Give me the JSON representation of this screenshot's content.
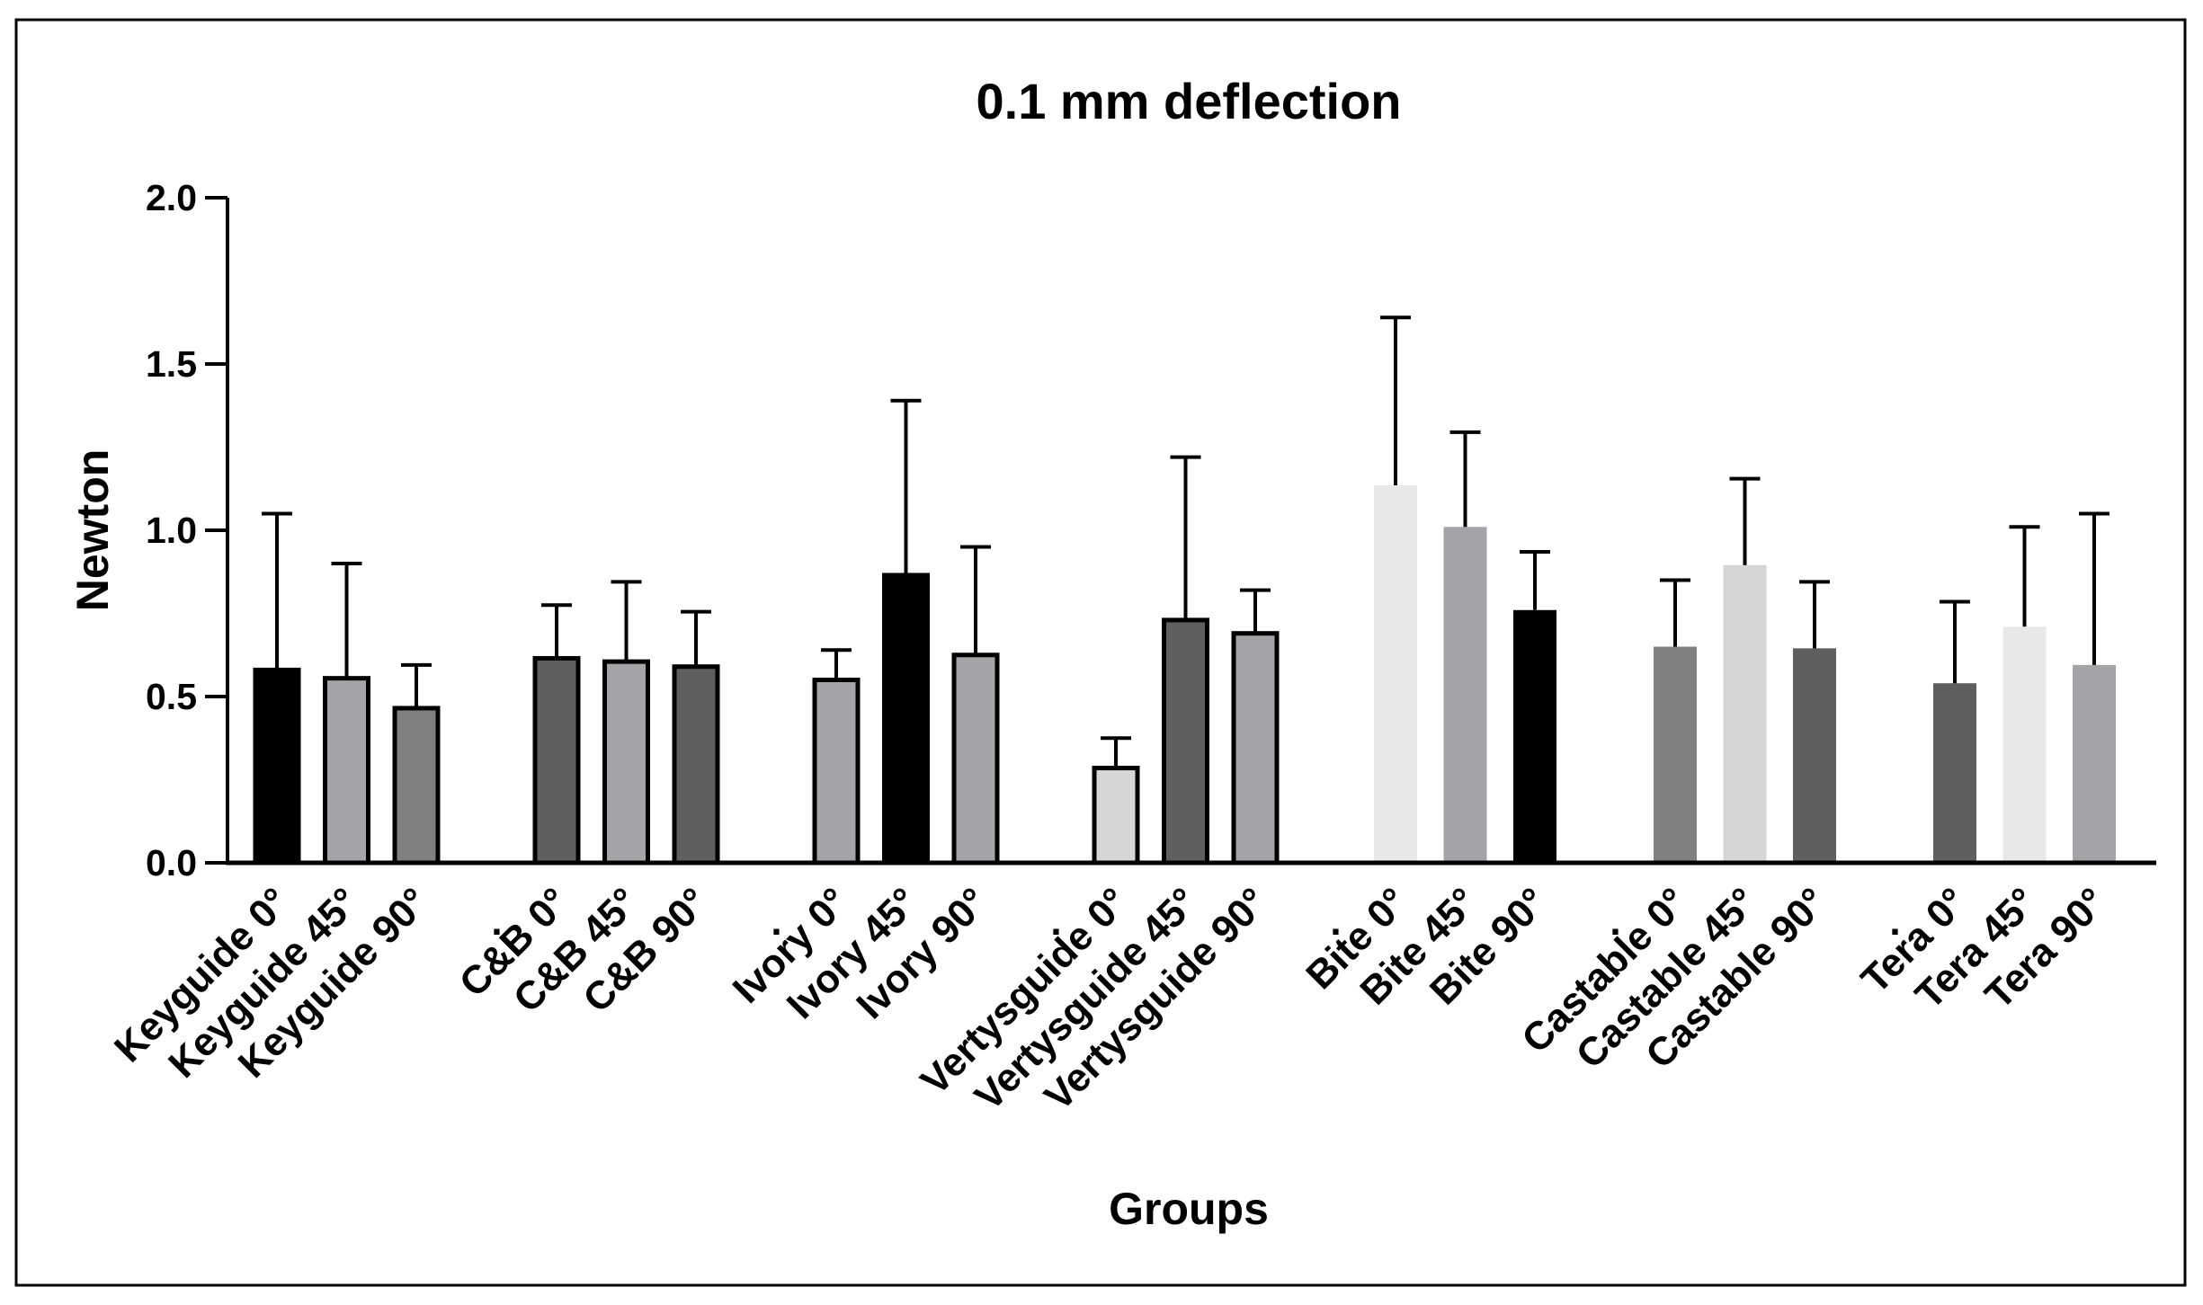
{
  "chart_data": {
    "type": "bar",
    "title": "0.1 mm deflection",
    "xlabel": "Groups",
    "ylabel": "Newton",
    "ylim": [
      0,
      2.0
    ],
    "yticks": [
      "0.0",
      "0.5",
      "1.0",
      "1.5",
      "2.0"
    ],
    "legend": "none",
    "grid": false,
    "groups": [
      {
        "name": "Keyguide",
        "bars": [
          {
            "label": "Keyguide 0°",
            "value": 0.58,
            "error": 0.47,
            "color": "#000000",
            "outlined": true
          },
          {
            "label": "Keyguide 45°",
            "value": 0.555,
            "error": 0.345,
            "color": "#a3a3a8",
            "outlined": true
          },
          {
            "label": "Keyguide 90°",
            "value": 0.465,
            "error": 0.13,
            "color": "#808080",
            "outlined": true
          }
        ]
      },
      {
        "name": "C&B",
        "bars": [
          {
            "label": "C&B 0°",
            "value": 0.615,
            "error": 0.16,
            "color": "#5f5f5f",
            "outlined": true
          },
          {
            "label": "C&B 45°",
            "value": 0.605,
            "error": 0.24,
            "color": "#a3a3a8",
            "outlined": true
          },
          {
            "label": "C&B 90°",
            "value": 0.59,
            "error": 0.165,
            "color": "#5f5f5f",
            "outlined": true
          }
        ]
      },
      {
        "name": "Ivory",
        "bars": [
          {
            "label": "Ivory 0°",
            "value": 0.55,
            "error": 0.09,
            "color": "#a3a3a8",
            "outlined": true
          },
          {
            "label": "Ivory 45°",
            "value": 0.865,
            "error": 0.525,
            "color": "#000000",
            "outlined": true
          },
          {
            "label": "Ivory 90°",
            "value": 0.625,
            "error": 0.325,
            "color": "#a3a3a8",
            "outlined": true
          }
        ]
      },
      {
        "name": "Vertysguide",
        "bars": [
          {
            "label": "Vertysguide 0°",
            "value": 0.285,
            "error": 0.09,
            "color": "#d6d6d6",
            "outlined": true
          },
          {
            "label": "Vertysguide 45°",
            "value": 0.73,
            "error": 0.49,
            "color": "#5f5f5f",
            "outlined": true
          },
          {
            "label": "Vertysguide 90°",
            "value": 0.69,
            "error": 0.13,
            "color": "#a3a3a8",
            "outlined": true
          }
        ]
      },
      {
        "name": "Bite",
        "bars": [
          {
            "label": "Bite 0°",
            "value": 1.135,
            "error": 0.505,
            "color": "#e8e8e8",
            "outlined": false
          },
          {
            "label": "Bite 45°",
            "value": 1.01,
            "error": 0.285,
            "color": "#a3a3a8",
            "outlined": false
          },
          {
            "label": "Bite 90°",
            "value": 0.76,
            "error": 0.175,
            "color": "#000000",
            "outlined": false
          }
        ]
      },
      {
        "name": "Castable",
        "bars": [
          {
            "label": "Castable 0°",
            "value": 0.65,
            "error": 0.2,
            "color": "#808080",
            "outlined": false
          },
          {
            "label": "Castable 45°",
            "value": 0.895,
            "error": 0.26,
            "color": "#d6d6d6",
            "outlined": false
          },
          {
            "label": "Castable 90°",
            "value": 0.645,
            "error": 0.2,
            "color": "#5f5f5f",
            "outlined": false
          }
        ]
      },
      {
        "name": "Tera",
        "bars": [
          {
            "label": "Tera 0°",
            "value": 0.54,
            "error": 0.245,
            "color": "#5f5f5f",
            "outlined": false
          },
          {
            "label": "Tera 45°",
            "value": 0.71,
            "error": 0.3,
            "color": "#e8e8e8",
            "outlined": false
          },
          {
            "label": "Tera 90°",
            "value": 0.595,
            "error": 0.455,
            "color": "#a3a3a8",
            "outlined": false
          }
        ]
      }
    ],
    "separator_labels": [
      ".",
      ".",
      ".",
      ".",
      ".",
      "."
    ]
  }
}
